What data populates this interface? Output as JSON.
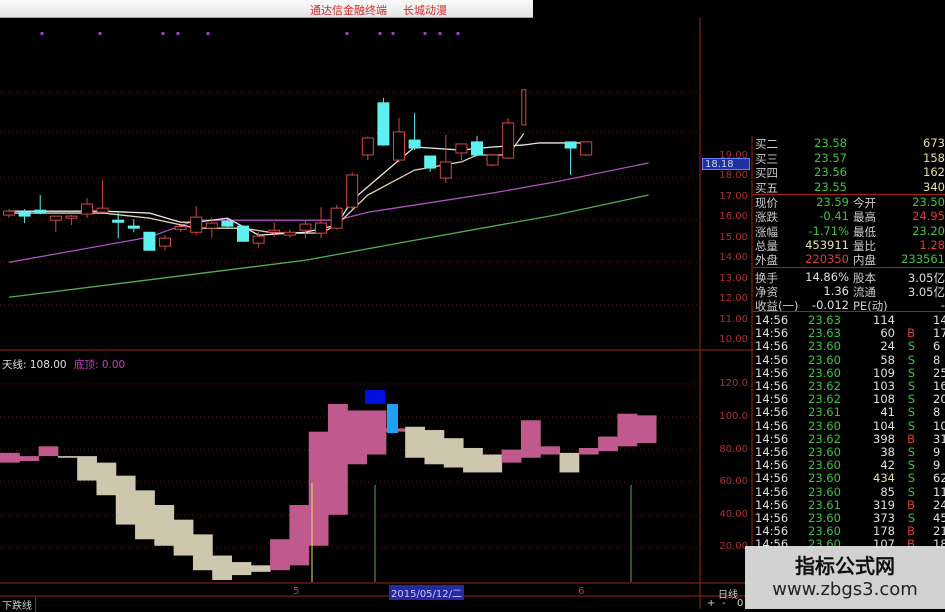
{
  "window": {
    "title": "通达信金融终端",
    "subtitle": "长城动漫"
  },
  "price_axis": [
    "19.00",
    "18.00",
    "17.00",
    "16.00",
    "15.00",
    "14.00",
    "13.00",
    "12.00",
    "11.00",
    "10.00"
  ],
  "price_axis_vals": [
    19,
    18,
    17,
    16,
    15,
    14,
    13,
    12,
    11,
    10
  ],
  "current_marker": "18.18",
  "indicator": {
    "name_label": "天线: 108.00",
    "top_label": "底顶: 0.00",
    "axis": [
      "120.0",
      "100.0",
      "80.00",
      "60.00",
      "40.00",
      "20.00"
    ],
    "axis_vals": [
      120,
      100,
      80,
      60,
      40,
      20
    ]
  },
  "order_book": [
    {
      "label": "买二",
      "price": "23.58",
      "vol": "673"
    },
    {
      "label": "买三",
      "price": "23.57",
      "vol": "158"
    },
    {
      "label": "买四",
      "price": "23.56",
      "vol": "162"
    },
    {
      "label": "买五",
      "price": "23.55",
      "vol": "340"
    }
  ],
  "quote": [
    {
      "l1": "现价",
      "v1": "23.59",
      "c1": "g",
      "l2": "今开",
      "v2": "23.50",
      "c2": "g"
    },
    {
      "l1": "涨跌",
      "v1": "-0.41",
      "c1": "g",
      "l2": "最高",
      "v2": "24.95",
      "c2": "r"
    },
    {
      "l1": "涨幅",
      "v1": "-1.71%",
      "c1": "g",
      "l2": "最低",
      "v2": "23.20",
      "c2": "g"
    },
    {
      "l1": "总量",
      "v1": "453911",
      "c1": "y",
      "l2": "量比",
      "v2": "1.28",
      "c2": "r"
    },
    {
      "l1": "外盘",
      "v1": "220350",
      "c1": "r",
      "l2": "内盘",
      "v2": "233561",
      "c2": "g"
    },
    {
      "l1": "换手",
      "v1": "14.86%",
      "c1": "w",
      "l2": "股本",
      "v2": "3.05亿",
      "c2": "w"
    },
    {
      "l1": "净资",
      "v1": "1.36",
      "c1": "w",
      "l2": "流通",
      "v2": "3.05亿",
      "c2": "w"
    },
    {
      "l1": "收益(一)",
      "v1": "-0.012",
      "c1": "w",
      "l2": "PE(动)",
      "v2": "-",
      "c2": "w"
    }
  ],
  "ticks": [
    [
      "14:56",
      "23.63",
      "114",
      "",
      "14"
    ],
    [
      "14:56",
      "23.63",
      "60",
      "B",
      "17"
    ],
    [
      "14:56",
      "23.60",
      "24",
      "S",
      "6"
    ],
    [
      "14:56",
      "23.60",
      "58",
      "S",
      "8"
    ],
    [
      "14:56",
      "23.60",
      "109",
      "S",
      "25"
    ],
    [
      "14:56",
      "23.62",
      "103",
      "S",
      "16"
    ],
    [
      "14:56",
      "23.62",
      "108",
      "S",
      "20"
    ],
    [
      "14:56",
      "23.61",
      "41",
      "S",
      "8"
    ],
    [
      "14:56",
      "23.60",
      "104",
      "S",
      "10"
    ],
    [
      "14:56",
      "23.62",
      "398",
      "B",
      "31"
    ],
    [
      "14:56",
      "23.60",
      "38",
      "S",
      "9"
    ],
    [
      "14:56",
      "23.60",
      "42",
      "S",
      "9"
    ],
    [
      "14:56",
      "23.60",
      "434",
      "S",
      "62"
    ],
    [
      "14:56",
      "23.60",
      "85",
      "S",
      "11"
    ],
    [
      "14:56",
      "23.61",
      "319",
      "B",
      "24"
    ],
    [
      "14:56",
      "23.60",
      "373",
      "S",
      "45"
    ],
    [
      "14:56",
      "23.60",
      "178",
      "B",
      "21"
    ],
    [
      "14:56",
      "23.60",
      "107",
      "B",
      "18"
    ]
  ],
  "bottom": {
    "left_label": "下跌线",
    "date": "2015/05/12/二",
    "month_5": "5",
    "month_6": "6",
    "period": "日线",
    "plus": "+",
    "minus": "-",
    "zero": "0"
  },
  "watermark": {
    "line1": "指标公式网",
    "line2": "www.zbgs3.com"
  },
  "colors": {
    "up": "#d04848",
    "down": "#5ff0f0",
    "ma5": "#e8e8e8",
    "ma10": "#e0d8b0",
    "ma30": "#b050c0",
    "ma60": "#50b050",
    "rise_band": "#c05a8e",
    "fall_band": "#cfc6ae",
    "grid": "#8a2020"
  },
  "chart_data": {
    "type": "candlestick",
    "candles": [
      [
        16.11,
        16.3,
        16.4,
        15.96
      ],
      [
        16.25,
        16.06,
        16.4,
        15.72
      ],
      [
        16.35,
        16.21,
        17.09,
        16.16
      ],
      [
        15.86,
        16.06,
        16.06,
        15.27
      ],
      [
        15.96,
        16.06,
        16.11,
        15.62
      ],
      [
        16.16,
        16.65,
        16.94,
        15.96
      ],
      [
        16.25,
        16.45,
        17.82,
        16.25
      ],
      [
        15.86,
        15.76,
        16.21,
        14.98
      ],
      [
        15.57,
        15.47,
        15.91,
        15.27
      ],
      [
        15.27,
        14.39,
        15.27,
        14.39
      ],
      [
        14.59,
        14.98,
        15.13,
        14.39
      ],
      [
        15.4,
        15.55,
        15.6,
        15.3
      ],
      [
        15.27,
        16.01,
        16.55,
        15.13
      ],
      [
        15.47,
        15.72,
        16.01,
        14.98
      ],
      [
        15.81,
        15.57,
        15.96,
        15.52
      ],
      [
        15.57,
        14.83,
        15.6,
        14.8
      ],
      [
        14.74,
        15.08,
        15.27,
        14.54
      ],
      [
        15.27,
        15.37,
        15.76,
        15.03
      ],
      [
        15.13,
        15.27,
        15.4,
        15.0
      ],
      [
        15.37,
        15.67,
        15.86,
        14.98
      ],
      [
        15.23,
        15.72,
        16.5,
        14.98
      ],
      [
        15.47,
        16.45,
        16.6,
        15.4
      ],
      [
        16.5,
        18.07,
        18.2,
        16.4
      ],
      [
        19.05,
        19.88,
        19.95,
        18.8
      ],
      [
        21.6,
        19.54,
        21.84,
        19.5
      ],
      [
        18.8,
        20.18,
        20.86,
        18.7
      ],
      [
        19.78,
        19.39,
        21.11,
        19.29
      ],
      [
        19.0,
        18.41,
        19.0,
        18.22
      ],
      [
        17.92,
        18.71,
        20.03,
        17.68
      ],
      [
        19.15,
        19.59,
        19.6,
        18.8
      ],
      [
        19.69,
        19.05,
        19.98,
        19.0
      ],
      [
        18.56,
        19.05,
        19.1,
        18.5
      ],
      [
        18.9,
        20.62,
        20.86,
        18.85
      ],
      [
        20.52,
        22.24,
        22.24,
        20.5
      ],
      null,
      null,
      [
        19.69,
        19.39,
        19.7,
        18.07
      ],
      [
        19.05,
        19.69,
        19.7,
        19.0
      ]
    ],
    "ma5": [
      [
        0,
        16.3
      ],
      [
        6,
        16.3
      ],
      [
        9,
        16.21
      ],
      [
        11,
        15.76
      ],
      [
        12,
        15.76
      ],
      [
        14,
        15.96
      ],
      [
        16,
        15.13
      ],
      [
        19,
        15.27
      ],
      [
        21,
        15.62
      ],
      [
        22,
        16.84
      ],
      [
        25,
        18.8
      ],
      [
        26,
        19.44
      ],
      [
        29,
        19.29
      ],
      [
        31,
        19.44
      ],
      [
        33,
        19.54
      ],
      [
        34,
        19.64
      ],
      [
        37,
        19.64
      ]
    ],
    "ma10": [
      [
        0,
        16.21
      ],
      [
        6,
        16.21
      ],
      [
        9,
        15.96
      ],
      [
        12,
        15.47
      ],
      [
        15,
        15.47
      ],
      [
        17,
        15.23
      ],
      [
        20,
        15.23
      ],
      [
        21,
        15.62
      ],
      [
        23,
        17.09
      ],
      [
        26,
        18.31
      ],
      [
        29,
        18.71
      ],
      [
        30,
        19.05
      ],
      [
        32,
        19.05
      ],
      [
        33,
        20.1
      ]
    ],
    "ma30": [
      [
        0,
        13.8
      ],
      [
        9,
        15.03
      ],
      [
        12,
        15.86
      ],
      [
        21,
        15.86
      ],
      [
        23,
        16.25
      ],
      [
        26,
        16.6
      ],
      [
        31,
        17.19
      ],
      [
        35,
        17.73
      ],
      [
        41,
        18.66
      ]
    ],
    "ma60": [
      [
        0,
        12.09
      ],
      [
        19,
        13.9
      ],
      [
        26,
        14.88
      ],
      [
        35,
        16.11
      ],
      [
        41,
        17.09
      ]
    ],
    "price_range": [
      10,
      19
    ],
    "indicator_bands": [
      [
        78,
        72,
        "rise"
      ],
      [
        76,
        73,
        "rise"
      ],
      [
        82,
        76,
        "rise"
      ],
      [
        76,
        75,
        "fall"
      ],
      [
        76,
        61,
        "fall"
      ],
      [
        72,
        52,
        "fall"
      ],
      [
        64,
        34,
        "fall"
      ],
      [
        55,
        25,
        "fall"
      ],
      [
        46,
        21,
        "fall"
      ],
      [
        37,
        15,
        "fall"
      ],
      [
        28,
        6,
        "fall"
      ],
      [
        15,
        0,
        "fall"
      ],
      [
        11,
        3,
        "fall"
      ],
      [
        9,
        5,
        "fall"
      ],
      [
        25,
        6,
        "rise"
      ],
      [
        46,
        9,
        "rise"
      ],
      [
        91,
        21,
        "rise"
      ],
      [
        108,
        40,
        "rise"
      ],
      [
        104,
        71,
        "rise"
      ],
      [
        104,
        77,
        "rise"
      ],
      [
        93,
        91,
        "rise"
      ],
      [
        94,
        75,
        "fall"
      ],
      [
        92,
        71,
        "fall"
      ],
      [
        87,
        69,
        "fall"
      ],
      [
        81,
        66,
        "fall"
      ],
      [
        77,
        66,
        "fall"
      ],
      [
        80,
        72,
        "rise"
      ],
      [
        98,
        75,
        "rise"
      ],
      [
        82,
        77,
        "rise"
      ],
      [
        78,
        66,
        "fall"
      ],
      [
        81,
        77,
        "rise"
      ],
      [
        88,
        79,
        "rise"
      ],
      [
        102,
        82,
        "rise"
      ],
      [
        101,
        84,
        "rise"
      ]
    ],
    "indicator_range": [
      0,
      125
    ]
  }
}
